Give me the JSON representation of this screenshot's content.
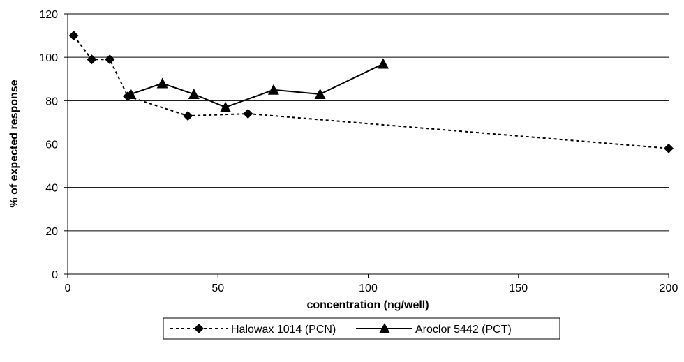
{
  "chart_data": {
    "type": "line",
    "title": "",
    "xlabel": "concentration (ng/well)",
    "ylabel": "% of expected response",
    "xlim": [
      0,
      200
    ],
    "ylim": [
      0,
      120
    ],
    "x_ticks": [
      0,
      50,
      100,
      150,
      200
    ],
    "y_ticks": [
      0,
      20,
      40,
      60,
      80,
      100,
      120
    ],
    "grid": "horizontal major gridlines",
    "legend_position": "bottom",
    "series": [
      {
        "name": "Halowax 1014 (PCN)",
        "marker": "diamond",
        "line_style": "dotted",
        "color": "#000000",
        "x": [
          2,
          8,
          14,
          20,
          40,
          60,
          200
        ],
        "y": [
          110,
          99,
          99,
          82,
          73,
          74,
          58
        ]
      },
      {
        "name": "Aroclor 5442 (PCT)",
        "marker": "triangle",
        "line_style": "solid",
        "color": "#000000",
        "x": [
          21,
          31.5,
          42,
          52.5,
          68.5,
          84,
          105
        ],
        "y": [
          83,
          88,
          83,
          77,
          85,
          83,
          97
        ]
      }
    ]
  }
}
